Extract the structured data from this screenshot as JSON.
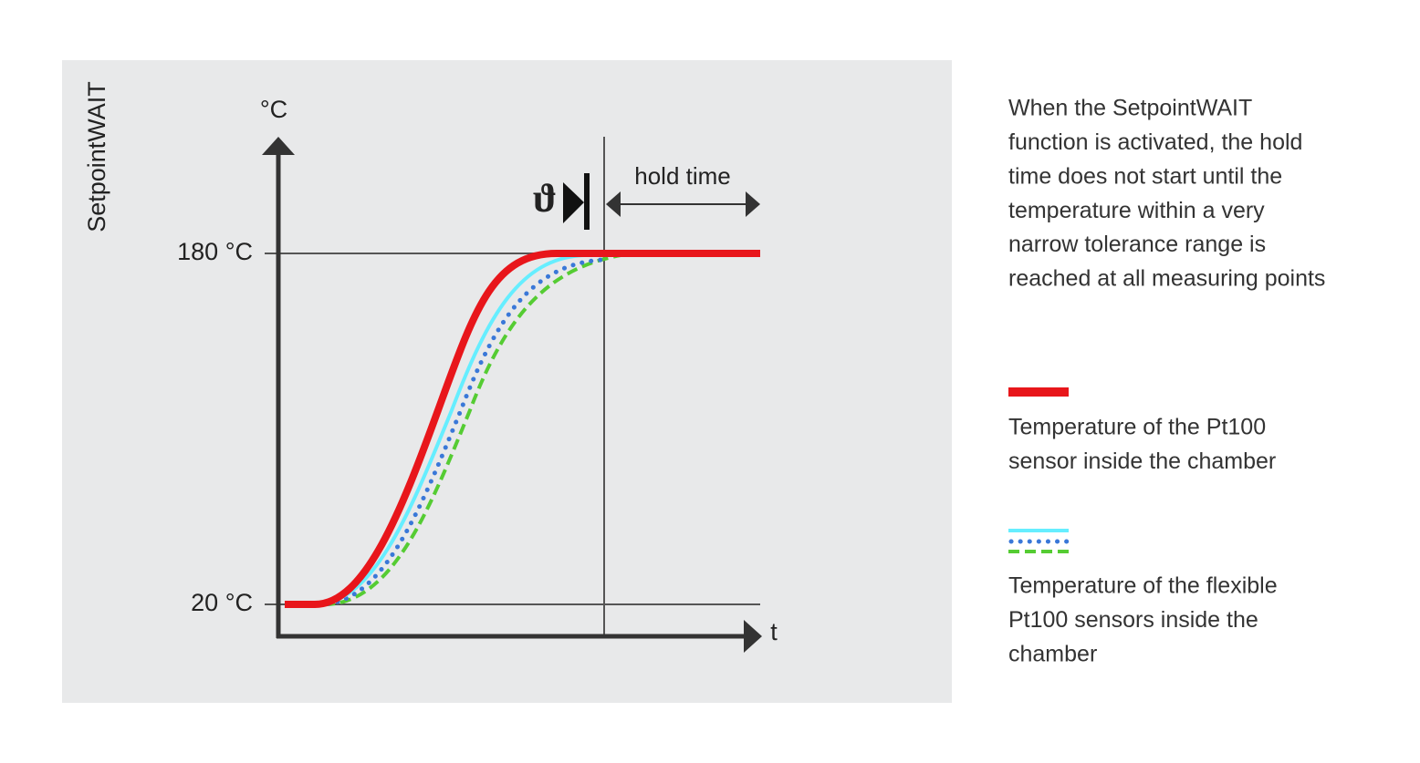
{
  "panel": {
    "side_label": "SetpointWAIT",
    "y_unit": "°C",
    "x_unit": "t",
    "y_labels": [
      "180 °C",
      "20 °C"
    ],
    "symbol": "ϑ",
    "hold_label": "hold time"
  },
  "description": [
    "When the SetpointWAIT",
    "function is activated, the hold",
    "time does not start until the",
    "temperature within a very",
    "narrow tolerance range is",
    "reached at all measuring points"
  ],
  "legend": [
    {
      "lines": [
        "Temperature of the Pt100",
        "sensor inside the chamber"
      ]
    },
    {
      "lines": [
        "Temperature of the flexible",
        "Pt100 sensors inside the",
        "chamber"
      ]
    }
  ]
}
